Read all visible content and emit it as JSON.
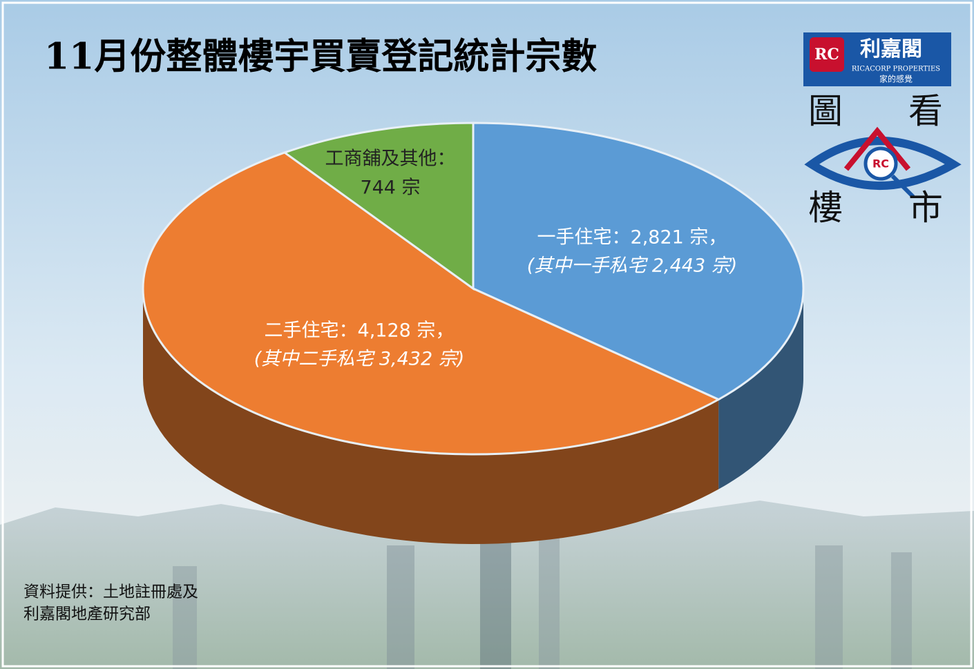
{
  "chart_data": {
    "type": "pie3d",
    "title": "11月份整體樓宇買賣登記統計宗數",
    "values": [
      2821,
      4128,
      744
    ],
    "value_labels": [
      [
        "一手住宅：2,821 宗，"
      ],
      [
        "二手住宅：4,128 宗，"
      ],
      [
        "工商舖及其他：",
        "744 宗"
      ]
    ],
    "annotations": [
      "(其中一手私宅 2,443 宗)",
      "(其中二手私宅 3,432 宗)"
    ],
    "colors": [
      "#5b9bd5",
      "#ed7d31",
      "#70ad47"
    ],
    "source": [
      "資料提供：土地註冊處及",
      "利嘉閣地產研究部"
    ]
  },
  "branding": {
    "company": "利嘉閣",
    "company_en": "RICACORP PROPERTIES",
    "slogan": "家的感覺",
    "mark": "RC",
    "badge": [
      "圖",
      "看",
      "樓",
      "市"
    ]
  }
}
